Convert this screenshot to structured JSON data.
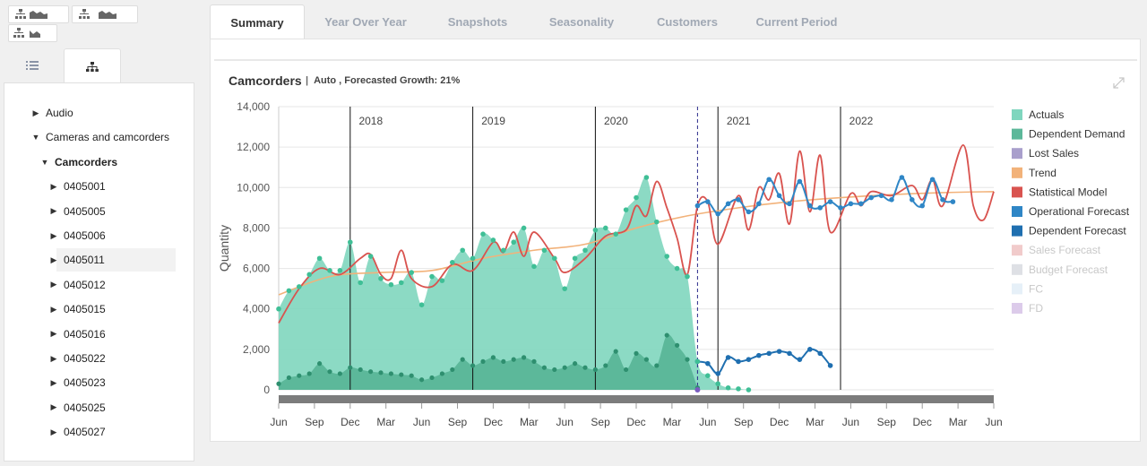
{
  "tree_panel": {
    "items": [
      {
        "label": "Audio",
        "level": 1,
        "state": "collapsed"
      },
      {
        "label": "Cameras and camcorders",
        "level": 1,
        "state": "expanded"
      },
      {
        "label": "Camcorders",
        "level": 2,
        "state": "expanded",
        "bold": true
      },
      {
        "label": "0405001",
        "level": 3,
        "state": "collapsed"
      },
      {
        "label": "0405005",
        "level": 3,
        "state": "collapsed"
      },
      {
        "label": "0405006",
        "level": 3,
        "state": "collapsed"
      },
      {
        "label": "0405011",
        "level": 3,
        "state": "collapsed",
        "hovered": true
      },
      {
        "label": "0405012",
        "level": 3,
        "state": "collapsed"
      },
      {
        "label": "0405015",
        "level": 3,
        "state": "collapsed"
      },
      {
        "label": "0405016",
        "level": 3,
        "state": "collapsed"
      },
      {
        "label": "0405022",
        "level": 3,
        "state": "collapsed"
      },
      {
        "label": "0405023",
        "level": 3,
        "state": "collapsed"
      },
      {
        "label": "0405025",
        "level": 3,
        "state": "collapsed"
      },
      {
        "label": "0405027",
        "level": 3,
        "state": "collapsed"
      }
    ]
  },
  "tabs": [
    {
      "label": "Summary",
      "active": true
    },
    {
      "label": "Year Over Year",
      "active": false
    },
    {
      "label": "Snapshots",
      "active": false
    },
    {
      "label": "Seasonality",
      "active": false
    },
    {
      "label": "Customers",
      "active": false
    },
    {
      "label": "Current Period",
      "active": false
    }
  ],
  "chart": {
    "title": "Camcorders",
    "separator": "|",
    "subtitle": "Auto , Forecasted Growth: 21%"
  },
  "colors": {
    "actuals": "#7fd6be",
    "dependent_demand": "#5cb89a",
    "lost_sales": "#a99fcc",
    "trend": "#f2b27a",
    "statistical_model": "#d9534f",
    "operational_forecast": "#2f86c6",
    "dependent_forecast": "#1f6fb0",
    "sales_forecast": "#e8a8a8",
    "budget_forecast": "#c8ccd4",
    "fc": "#d6e6f4",
    "fd": "#c4a8dc"
  },
  "chart_data": {
    "type": "area",
    "ylabel": "Quantity",
    "ylim": [
      0,
      14000
    ],
    "y_ticks": [
      "0",
      "2,000",
      "4,000",
      "6,000",
      "8,000",
      "10,000",
      "12,000",
      "14,000"
    ],
    "x_ticks": [
      "Jun",
      "Sep",
      "Dec",
      "Mar",
      "Jun",
      "Sep",
      "Dec",
      "Mar",
      "Jun",
      "Sep",
      "Dec",
      "Mar",
      "Jun",
      "Sep",
      "Dec",
      "Mar",
      "Jun",
      "Sep",
      "Dec",
      "Mar",
      "Jun"
    ],
    "year_labels": [
      "2018",
      "2019",
      "2020",
      "2021",
      "2022"
    ],
    "legend": [
      {
        "name": "Actuals",
        "color": "#7fd6be",
        "visible": true
      },
      {
        "name": "Dependent Demand",
        "color": "#5cb89a",
        "visible": true
      },
      {
        "name": "Lost Sales",
        "color": "#a99fcc",
        "visible": true
      },
      {
        "name": "Trend",
        "color": "#f2b27a",
        "visible": true
      },
      {
        "name": "Statistical Model",
        "color": "#d9534f",
        "visible": true
      },
      {
        "name": "Operational Forecast",
        "color": "#2f86c6",
        "visible": true
      },
      {
        "name": "Dependent Forecast",
        "color": "#1f6fb0",
        "visible": true
      },
      {
        "name": "Sales Forecast",
        "color": "#e8a8a8",
        "visible": false
      },
      {
        "name": "Budget Forecast",
        "color": "#c8ccd4",
        "visible": false
      },
      {
        "name": "FC",
        "color": "#d6e6f4",
        "visible": false
      },
      {
        "name": "FD",
        "color": "#c4a8dc",
        "visible": false
      }
    ],
    "series": [
      {
        "name": "Actuals",
        "values": [
          [
            0,
            4000
          ],
          [
            1,
            4900
          ],
          [
            2,
            5100
          ],
          [
            3,
            5700
          ],
          [
            4,
            6500
          ],
          [
            5,
            5900
          ],
          [
            6,
            5900
          ],
          [
            7,
            7300
          ],
          [
            8,
            5300
          ],
          [
            9,
            6600
          ],
          [
            10,
            5500
          ],
          [
            11,
            5200
          ],
          [
            12,
            5300
          ],
          [
            13,
            5800
          ],
          [
            14,
            4200
          ],
          [
            15,
            5600
          ],
          [
            16,
            5400
          ],
          [
            17,
            6300
          ],
          [
            18,
            6900
          ],
          [
            19,
            6500
          ],
          [
            20,
            7700
          ],
          [
            21,
            7400
          ],
          [
            22,
            6900
          ],
          [
            23,
            7300
          ],
          [
            24,
            8000
          ],
          [
            25,
            6100
          ],
          [
            26,
            6900
          ],
          [
            27,
            6500
          ],
          [
            28,
            5000
          ],
          [
            29,
            6500
          ],
          [
            30,
            6900
          ],
          [
            31,
            7900
          ],
          [
            32,
            8000
          ],
          [
            33,
            7700
          ],
          [
            34,
            8900
          ],
          [
            35,
            9500
          ],
          [
            36,
            10500
          ],
          [
            37,
            8300
          ],
          [
            38,
            6600
          ],
          [
            39,
            6000
          ],
          [
            40,
            5600
          ],
          [
            41,
            1400
          ],
          [
            42,
            700
          ],
          [
            43,
            300
          ],
          [
            44,
            100
          ],
          [
            45,
            50
          ],
          [
            46,
            0
          ]
        ]
      },
      {
        "name": "Dependent Demand",
        "values": [
          [
            0,
            300
          ],
          [
            1,
            600
          ],
          [
            2,
            700
          ],
          [
            3,
            800
          ],
          [
            4,
            1300
          ],
          [
            5,
            900
          ],
          [
            6,
            800
          ],
          [
            7,
            1100
          ],
          [
            8,
            1000
          ],
          [
            9,
            900
          ],
          [
            10,
            850
          ],
          [
            11,
            800
          ],
          [
            12,
            750
          ],
          [
            13,
            700
          ],
          [
            14,
            500
          ],
          [
            15,
            600
          ],
          [
            16,
            800
          ],
          [
            17,
            1000
          ],
          [
            18,
            1500
          ],
          [
            19,
            1200
          ],
          [
            20,
            1400
          ],
          [
            21,
            1600
          ],
          [
            22,
            1400
          ],
          [
            23,
            1500
          ],
          [
            24,
            1600
          ],
          [
            25,
            1400
          ],
          [
            26,
            1100
          ],
          [
            27,
            1000
          ],
          [
            28,
            1100
          ],
          [
            29,
            1300
          ],
          [
            30,
            1100
          ],
          [
            31,
            1000
          ],
          [
            32,
            1200
          ],
          [
            33,
            1900
          ],
          [
            34,
            1000
          ],
          [
            35,
            1800
          ],
          [
            36,
            1500
          ],
          [
            37,
            1200
          ],
          [
            38,
            2700
          ],
          [
            39,
            2200
          ],
          [
            40,
            1500
          ],
          [
            41,
            100
          ]
        ]
      },
      {
        "name": "Trend",
        "values": [
          [
            0,
            4700
          ],
          [
            5,
            5600
          ],
          [
            10,
            5800
          ],
          [
            15,
            5900
          ],
          [
            20,
            6500
          ],
          [
            25,
            6900
          ],
          [
            30,
            7200
          ],
          [
            35,
            8000
          ],
          [
            40,
            8600
          ],
          [
            45,
            9000
          ],
          [
            50,
            9300
          ],
          [
            55,
            9500
          ],
          [
            60,
            9650
          ],
          [
            65,
            9750
          ],
          [
            70,
            9800
          ]
        ]
      },
      {
        "name": "Statistical Model",
        "values": [
          [
            0,
            3300
          ],
          [
            2,
            5000
          ],
          [
            4,
            6000
          ],
          [
            6,
            5700
          ],
          [
            8,
            6500
          ],
          [
            9,
            6700
          ],
          [
            10,
            5700
          ],
          [
            11,
            5500
          ],
          [
            12,
            6900
          ],
          [
            13,
            5500
          ],
          [
            15,
            5100
          ],
          [
            17,
            6200
          ],
          [
            19,
            5900
          ],
          [
            21,
            7300
          ],
          [
            22,
            6800
          ],
          [
            23,
            7800
          ],
          [
            24,
            6600
          ],
          [
            25,
            7800
          ],
          [
            27,
            6500
          ],
          [
            28,
            5800
          ],
          [
            30,
            6500
          ],
          [
            32,
            7600
          ],
          [
            34,
            7900
          ],
          [
            35,
            9100
          ],
          [
            36,
            8600
          ],
          [
            37,
            10300
          ],
          [
            38,
            9000
          ],
          [
            39,
            7500
          ],
          [
            40,
            5700
          ],
          [
            41,
            9100
          ],
          [
            42,
            9300
          ],
          [
            43,
            7200
          ],
          [
            45,
            9600
          ],
          [
            46,
            7900
          ],
          [
            47,
            10000
          ],
          [
            48,
            9400
          ],
          [
            49,
            10700
          ],
          [
            50,
            8200
          ],
          [
            51,
            11800
          ],
          [
            52,
            8800
          ],
          [
            53,
            11600
          ],
          [
            54,
            7800
          ],
          [
            56,
            9700
          ],
          [
            57,
            9100
          ],
          [
            58,
            9800
          ],
          [
            60,
            9600
          ],
          [
            62,
            10100
          ],
          [
            63,
            9400
          ],
          [
            64,
            10400
          ],
          [
            65,
            9100
          ],
          [
            67,
            12100
          ],
          [
            68,
            9100
          ],
          [
            69,
            8400
          ],
          [
            70,
            9800
          ]
        ]
      },
      {
        "name": "Operational Forecast",
        "values": [
          [
            41,
            9100
          ],
          [
            42,
            9300
          ],
          [
            43,
            8700
          ],
          [
            44,
            9200
          ],
          [
            45,
            9400
          ],
          [
            46,
            8800
          ],
          [
            47,
            9200
          ],
          [
            48,
            10400
          ],
          [
            49,
            9600
          ],
          [
            50,
            9200
          ],
          [
            51,
            10300
          ],
          [
            52,
            9100
          ],
          [
            53,
            9000
          ],
          [
            54,
            9300
          ],
          [
            55,
            9000
          ],
          [
            56,
            9200
          ],
          [
            57,
            9200
          ],
          [
            58,
            9500
          ],
          [
            59,
            9600
          ],
          [
            60,
            9400
          ],
          [
            61,
            10500
          ],
          [
            62,
            9400
          ],
          [
            63,
            9100
          ],
          [
            64,
            10400
          ],
          [
            65,
            9400
          ],
          [
            66,
            9300
          ]
        ]
      },
      {
        "name": "Dependent Forecast",
        "values": [
          [
            41,
            1400
          ],
          [
            42,
            1300
          ],
          [
            43,
            800
          ],
          [
            44,
            1600
          ],
          [
            45,
            1400
          ],
          [
            46,
            1500
          ],
          [
            47,
            1700
          ],
          [
            48,
            1800
          ],
          [
            49,
            1900
          ],
          [
            50,
            1800
          ],
          [
            51,
            1500
          ],
          [
            52,
            2000
          ],
          [
            53,
            1800
          ],
          [
            54,
            1200
          ]
        ]
      },
      {
        "name": "Lost Sales",
        "values": [
          [
            41,
            0
          ]
        ]
      }
    ],
    "today_index": 41,
    "total_points": 70
  }
}
